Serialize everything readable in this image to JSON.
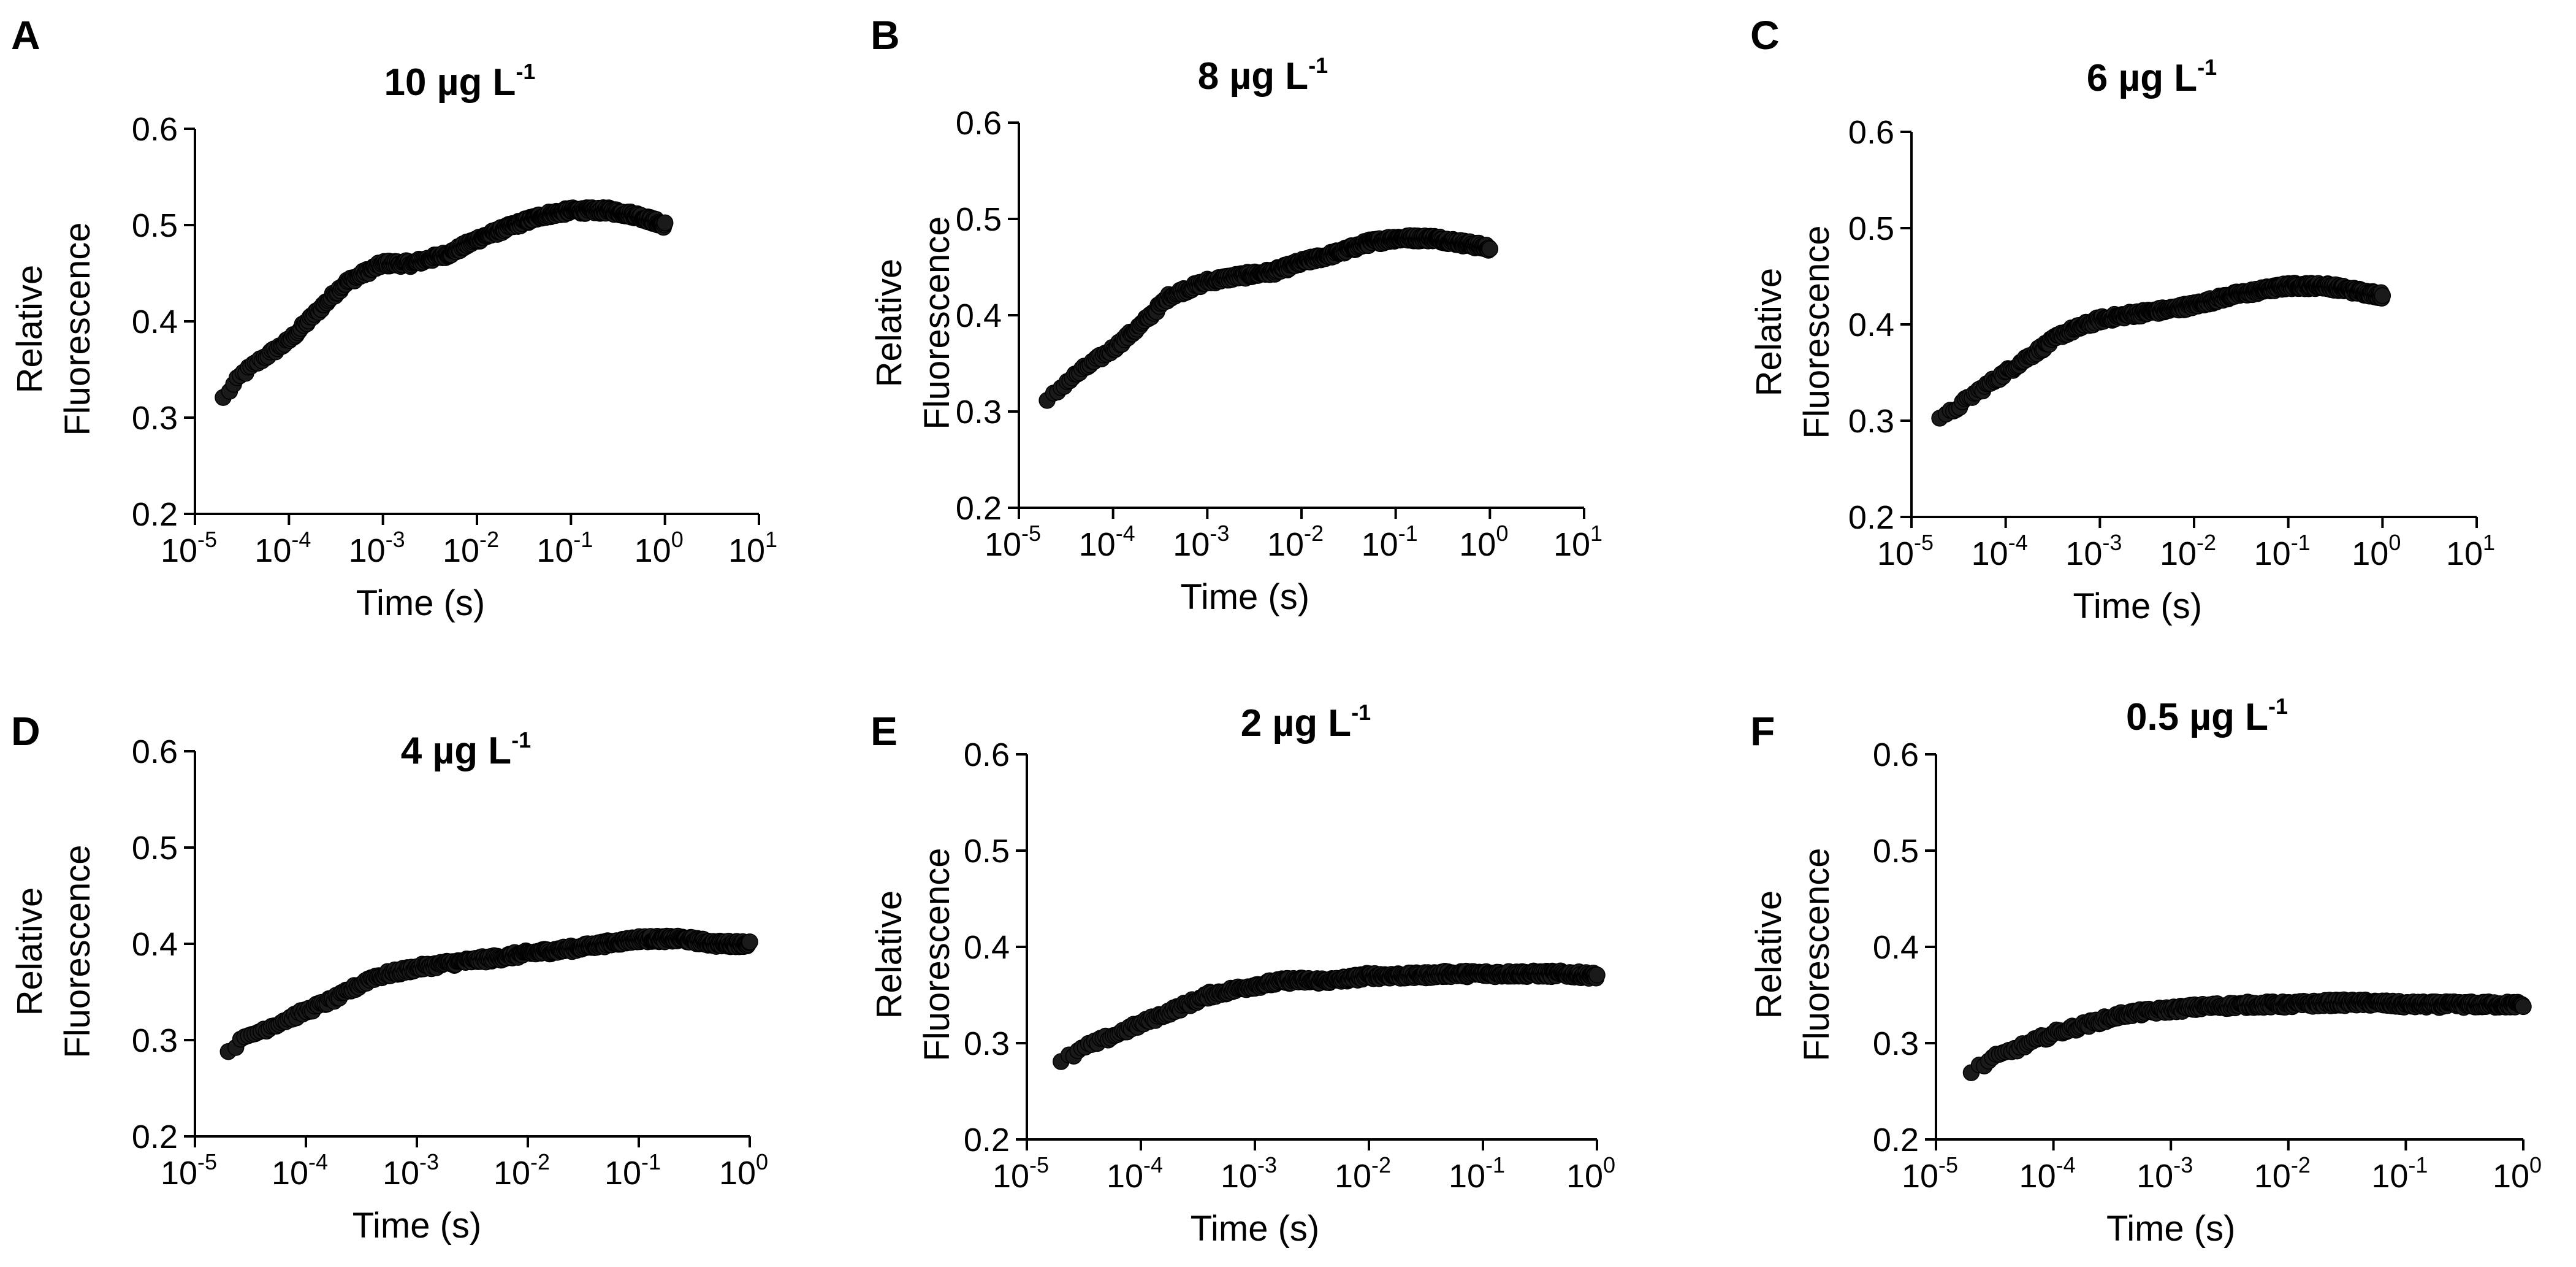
{
  "figure": {
    "colors": {
      "marker": "#1a1a1a",
      "axis": "#000000",
      "background": "#ffffff"
    }
  },
  "chart_data": [
    {
      "panel": "A",
      "type": "scatter",
      "title": "10 µg L",
      "title_sup": "-1",
      "xlabel": "Time (s)",
      "ylabel_lines": [
        "Relative",
        "Fluorescence"
      ],
      "xscale": "log",
      "xlim_exp": [
        -5,
        1
      ],
      "xticks": [
        {
          "base": "10",
          "exp": "-5"
        },
        {
          "base": "10",
          "exp": "-4"
        },
        {
          "base": "10",
          "exp": "-3"
        },
        {
          "base": "10",
          "exp": "-2"
        },
        {
          "base": "10",
          "exp": "-1"
        },
        {
          "base": "10",
          "exp": "0"
        },
        {
          "base": "10",
          "exp": "1"
        }
      ],
      "ylim": [
        0.2,
        0.6
      ],
      "yticks": [
        "0.2",
        "0.3",
        "0.4",
        "0.5",
        "0.6"
      ],
      "series": [
        {
          "name": "fluorescence",
          "log10_time": [
            -4.7,
            -4.5,
            -4.3,
            -4.0,
            -3.7,
            -3.4,
            -3.0,
            -2.7,
            -2.3,
            -2.0,
            -1.6,
            -1.3,
            -1.0,
            -0.6,
            -0.3,
            0.0
          ],
          "y": [
            0.32,
            0.345,
            0.36,
            0.38,
            0.41,
            0.44,
            0.46,
            0.46,
            0.47,
            0.485,
            0.5,
            0.51,
            0.515,
            0.515,
            0.51,
            0.5
          ]
        }
      ]
    },
    {
      "panel": "B",
      "type": "scatter",
      "title": "8 µg L",
      "title_sup": "-1",
      "xlabel": "Time (s)",
      "ylabel_lines": [
        "Relative",
        "Fluorescence"
      ],
      "xscale": "log",
      "xlim_exp": [
        -5,
        1
      ],
      "xticks": [
        {
          "base": "10",
          "exp": "-5"
        },
        {
          "base": "10",
          "exp": "-4"
        },
        {
          "base": "10",
          "exp": "-3"
        },
        {
          "base": "10",
          "exp": "-2"
        },
        {
          "base": "10",
          "exp": "-1"
        },
        {
          "base": "10",
          "exp": "0"
        },
        {
          "base": "10",
          "exp": "1"
        }
      ],
      "ylim": [
        0.2,
        0.6
      ],
      "yticks": [
        "0.2",
        "0.3",
        "0.4",
        "0.5",
        "0.6"
      ],
      "series": [
        {
          "name": "fluorescence",
          "log10_time": [
            -4.7,
            -4.5,
            -4.3,
            -4.0,
            -3.7,
            -3.4,
            -3.0,
            -2.7,
            -2.3,
            -2.0,
            -1.6,
            -1.3,
            -1.0,
            -0.6,
            -0.3,
            0.0
          ],
          "y": [
            0.31,
            0.33,
            0.345,
            0.365,
            0.39,
            0.42,
            0.435,
            0.44,
            0.445,
            0.455,
            0.465,
            0.475,
            0.48,
            0.48,
            0.475,
            0.47
          ]
        }
      ]
    },
    {
      "panel": "C",
      "type": "scatter",
      "title": "6 µg L",
      "title_sup": "-1",
      "xlabel": "Time (s)",
      "ylabel_lines": [
        "Relative",
        "Fluorescence"
      ],
      "xscale": "log",
      "xlim_exp": [
        -5,
        1
      ],
      "xticks": [
        {
          "base": "10",
          "exp": "-5"
        },
        {
          "base": "10",
          "exp": "-4"
        },
        {
          "base": "10",
          "exp": "-3"
        },
        {
          "base": "10",
          "exp": "-2"
        },
        {
          "base": "10",
          "exp": "-1"
        },
        {
          "base": "10",
          "exp": "0"
        },
        {
          "base": "10",
          "exp": "1"
        }
      ],
      "ylim": [
        0.2,
        0.6
      ],
      "yticks": [
        "0.2",
        "0.3",
        "0.4",
        "0.5",
        "0.6"
      ],
      "series": [
        {
          "name": "fluorescence",
          "log10_time": [
            -4.7,
            -4.5,
            -4.3,
            -4.0,
            -3.7,
            -3.4,
            -3.0,
            -2.7,
            -2.3,
            -2.0,
            -1.6,
            -1.3,
            -1.0,
            -0.6,
            -0.3,
            0.0
          ],
          "y": [
            0.3,
            0.315,
            0.33,
            0.35,
            0.37,
            0.39,
            0.405,
            0.41,
            0.415,
            0.42,
            0.43,
            0.435,
            0.44,
            0.44,
            0.435,
            0.43
          ]
        }
      ]
    },
    {
      "panel": "D",
      "type": "scatter",
      "title": "4 µg L",
      "title_sup": "-1",
      "xlabel": "Time (s)",
      "ylabel_lines": [
        "Relative",
        "Fluorescence"
      ],
      "xscale": "log",
      "xlim_exp": [
        -5,
        0
      ],
      "xticks": [
        {
          "base": "10",
          "exp": "-5"
        },
        {
          "base": "10",
          "exp": "-4"
        },
        {
          "base": "10",
          "exp": "-3"
        },
        {
          "base": "10",
          "exp": "-2"
        },
        {
          "base": "10",
          "exp": "-1"
        },
        {
          "base": "10",
          "exp": "0"
        }
      ],
      "ylim": [
        0.2,
        0.6
      ],
      "yticks": [
        "0.2",
        "0.3",
        "0.4",
        "0.5",
        "0.6"
      ],
      "series": [
        {
          "name": "fluorescence",
          "log10_time": [
            -4.7,
            -4.5,
            -4.3,
            -4.0,
            -3.7,
            -3.4,
            -3.0,
            -2.7,
            -2.3,
            -2.0,
            -1.6,
            -1.3,
            -1.0,
            -0.6,
            -0.3,
            0.0
          ],
          "y": [
            0.29,
            0.305,
            0.315,
            0.33,
            0.345,
            0.365,
            0.375,
            0.38,
            0.385,
            0.39,
            0.395,
            0.4,
            0.405,
            0.405,
            0.4,
            0.4
          ]
        }
      ]
    },
    {
      "panel": "E",
      "type": "scatter",
      "title": "2 µg L",
      "title_sup": "-1",
      "xlabel": "Time (s)",
      "ylabel_lines": [
        "Relative",
        "Fluorescence"
      ],
      "xscale": "log",
      "xlim_exp": [
        -5,
        0
      ],
      "xticks": [
        {
          "base": "10",
          "exp": "-5"
        },
        {
          "base": "10",
          "exp": "-4"
        },
        {
          "base": "10",
          "exp": "-3"
        },
        {
          "base": "10",
          "exp": "-2"
        },
        {
          "base": "10",
          "exp": "-1"
        },
        {
          "base": "10",
          "exp": "0"
        }
      ],
      "ylim": [
        0.2,
        0.6
      ],
      "yticks": [
        "0.2",
        "0.3",
        "0.4",
        "0.5",
        "0.6"
      ],
      "series": [
        {
          "name": "fluorescence",
          "log10_time": [
            -4.7,
            -4.5,
            -4.3,
            -4.0,
            -3.7,
            -3.4,
            -3.0,
            -2.7,
            -2.3,
            -2.0,
            -1.6,
            -1.3,
            -1.0,
            -0.6,
            -0.3,
            0.0
          ],
          "y": [
            0.28,
            0.295,
            0.305,
            0.32,
            0.335,
            0.35,
            0.36,
            0.365,
            0.365,
            0.37,
            0.37,
            0.372,
            0.372,
            0.372,
            0.372,
            0.37
          ]
        }
      ]
    },
    {
      "panel": "F",
      "type": "scatter",
      "title": "0.5 µg L",
      "title_sup": "-1",
      "xlabel": "Time (s)",
      "ylabel_lines": [
        "Relative",
        "Fluorescence"
      ],
      "xscale": "log",
      "xlim_exp": [
        -5,
        0
      ],
      "xticks": [
        {
          "base": "10",
          "exp": "-5"
        },
        {
          "base": "10",
          "exp": "-4"
        },
        {
          "base": "10",
          "exp": "-3"
        },
        {
          "base": "10",
          "exp": "-2"
        },
        {
          "base": "10",
          "exp": "-1"
        },
        {
          "base": "10",
          "exp": "0"
        }
      ],
      "ylim": [
        0.2,
        0.6
      ],
      "yticks": [
        "0.2",
        "0.3",
        "0.4",
        "0.5",
        "0.6"
      ],
      "series": [
        {
          "name": "fluorescence",
          "log10_time": [
            -4.7,
            -4.5,
            -4.3,
            -4.0,
            -3.7,
            -3.4,
            -3.0,
            -2.7,
            -2.3,
            -2.0,
            -1.6,
            -1.3,
            -1.0,
            -0.6,
            -0.3,
            0.0
          ],
          "y": [
            0.27,
            0.285,
            0.295,
            0.31,
            0.32,
            0.33,
            0.335,
            0.338,
            0.34,
            0.34,
            0.342,
            0.342,
            0.34,
            0.34,
            0.34,
            0.34
          ]
        }
      ]
    }
  ]
}
